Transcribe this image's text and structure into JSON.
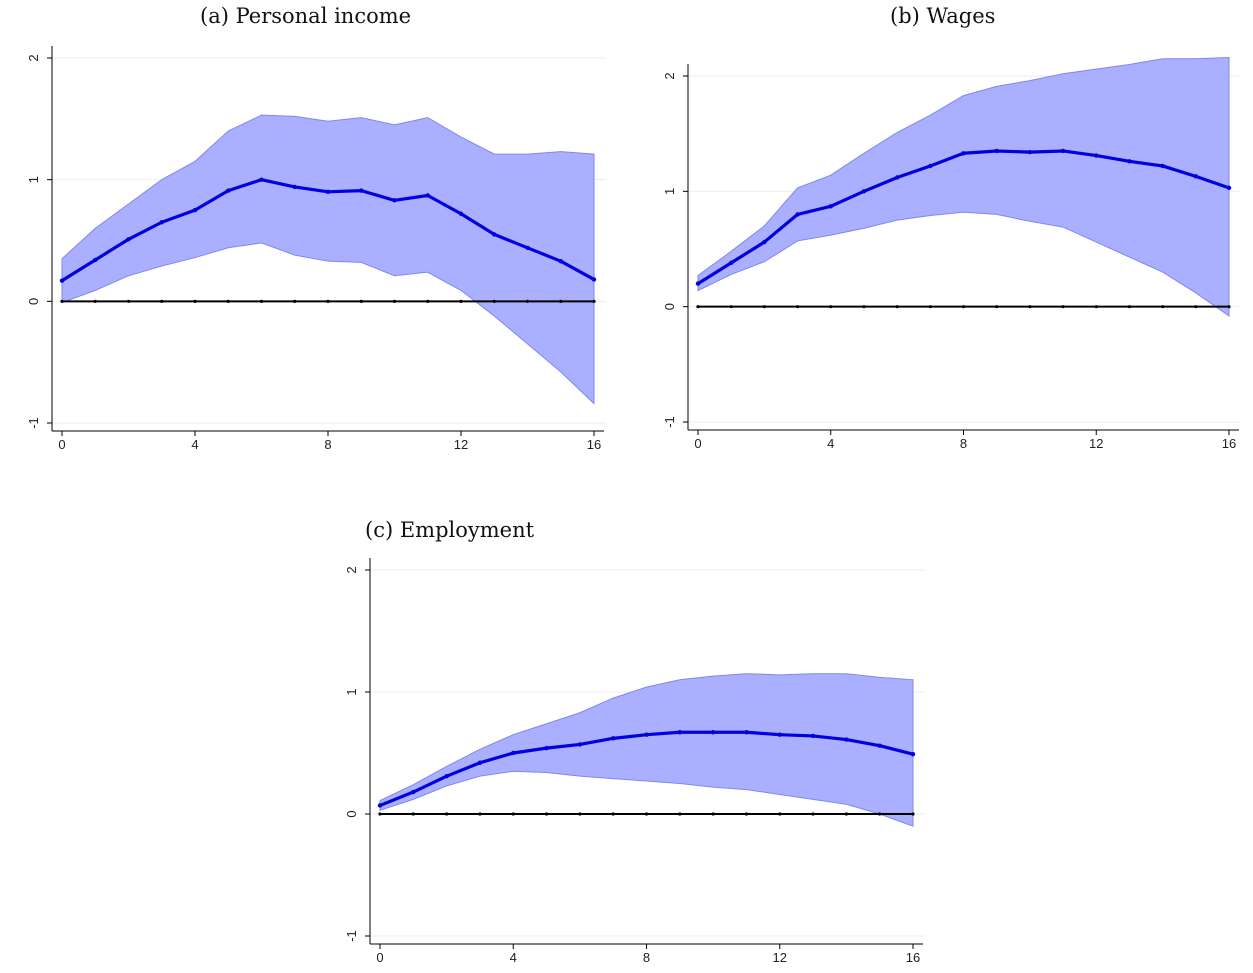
{
  "colors": {
    "band": "#aab0ff",
    "band_edge": "#7f86f0",
    "line": "#0000e0",
    "zero": "#000000",
    "grid": "#eeeeee"
  },
  "chart_data": [
    {
      "type": "line",
      "title": "(a) Personal income",
      "x": [
        0,
        1,
        2,
        3,
        4,
        5,
        6,
        7,
        8,
        9,
        10,
        11,
        12,
        13,
        14,
        15,
        16
      ],
      "xticks": [
        "0",
        "4",
        "8",
        "12",
        "16"
      ],
      "yticks": [
        "-1",
        "0",
        "1",
        "2"
      ],
      "xlim": [
        0,
        16
      ],
      "ylim": [
        -1,
        2
      ],
      "series": [
        {
          "role": "point",
          "values": [
            0.17,
            0.34,
            0.51,
            0.65,
            0.75,
            0.91,
            1.0,
            0.94,
            0.9,
            0.91,
            0.83,
            0.87,
            0.72,
            0.55,
            0.44,
            0.33,
            0.18
          ]
        },
        {
          "role": "upper",
          "values": [
            0.35,
            0.6,
            0.8,
            1.0,
            1.15,
            1.4,
            1.53,
            1.52,
            1.48,
            1.51,
            1.45,
            1.51,
            1.35,
            1.21,
            1.21,
            1.23,
            1.21
          ]
        },
        {
          "role": "lower",
          "values": [
            -0.01,
            0.09,
            0.21,
            0.29,
            0.36,
            0.44,
            0.48,
            0.38,
            0.33,
            0.32,
            0.21,
            0.24,
            0.09,
            -0.12,
            -0.35,
            -0.58,
            -0.84
          ]
        }
      ],
      "grid": true
    },
    {
      "type": "line",
      "title": "(b) Wages",
      "x": [
        0,
        1,
        2,
        3,
        4,
        5,
        6,
        7,
        8,
        9,
        10,
        11,
        12,
        13,
        14,
        15,
        16
      ],
      "xticks": [
        "0",
        "4",
        "8",
        "12",
        "16"
      ],
      "yticks": [
        "-1",
        "0",
        "1",
        "2"
      ],
      "xlim": [
        0,
        16
      ],
      "ylim": [
        -1,
        2
      ],
      "series": [
        {
          "role": "point",
          "values": [
            0.2,
            0.38,
            0.56,
            0.8,
            0.87,
            1.0,
            1.12,
            1.22,
            1.33,
            1.35,
            1.34,
            1.35,
            1.31,
            1.26,
            1.22,
            1.13,
            1.03
          ]
        },
        {
          "role": "upper",
          "values": [
            0.27,
            0.48,
            0.7,
            1.03,
            1.14,
            1.33,
            1.51,
            1.66,
            1.83,
            1.91,
            1.96,
            2.02,
            2.06,
            2.1,
            2.15,
            2.15,
            2.16
          ]
        },
        {
          "role": "lower",
          "values": [
            0.14,
            0.28,
            0.39,
            0.57,
            0.62,
            0.68,
            0.75,
            0.79,
            0.82,
            0.8,
            0.74,
            0.69,
            0.56,
            0.43,
            0.3,
            0.12,
            -0.08
          ]
        }
      ],
      "grid": true
    },
    {
      "type": "line",
      "title": "(c) Employment",
      "x": [
        0,
        1,
        2,
        3,
        4,
        5,
        6,
        7,
        8,
        9,
        10,
        11,
        12,
        13,
        14,
        15,
        16
      ],
      "xticks": [
        "0",
        "4",
        "8",
        "12",
        "16"
      ],
      "yticks": [
        "-1",
        "0",
        "1",
        "2"
      ],
      "xlim": [
        0,
        16
      ],
      "ylim": [
        -1,
        2
      ],
      "series": [
        {
          "role": "point",
          "values": [
            0.07,
            0.18,
            0.31,
            0.42,
            0.5,
            0.54,
            0.57,
            0.62,
            0.65,
            0.67,
            0.67,
            0.67,
            0.65,
            0.64,
            0.61,
            0.56,
            0.49
          ]
        },
        {
          "role": "upper",
          "values": [
            0.11,
            0.24,
            0.39,
            0.53,
            0.65,
            0.74,
            0.83,
            0.95,
            1.04,
            1.1,
            1.13,
            1.15,
            1.14,
            1.15,
            1.15,
            1.12,
            1.1
          ]
        },
        {
          "role": "lower",
          "values": [
            0.03,
            0.12,
            0.23,
            0.31,
            0.35,
            0.34,
            0.31,
            0.29,
            0.27,
            0.25,
            0.22,
            0.2,
            0.16,
            0.12,
            0.08,
            0.0,
            -0.1
          ]
        }
      ],
      "grid": true
    }
  ]
}
